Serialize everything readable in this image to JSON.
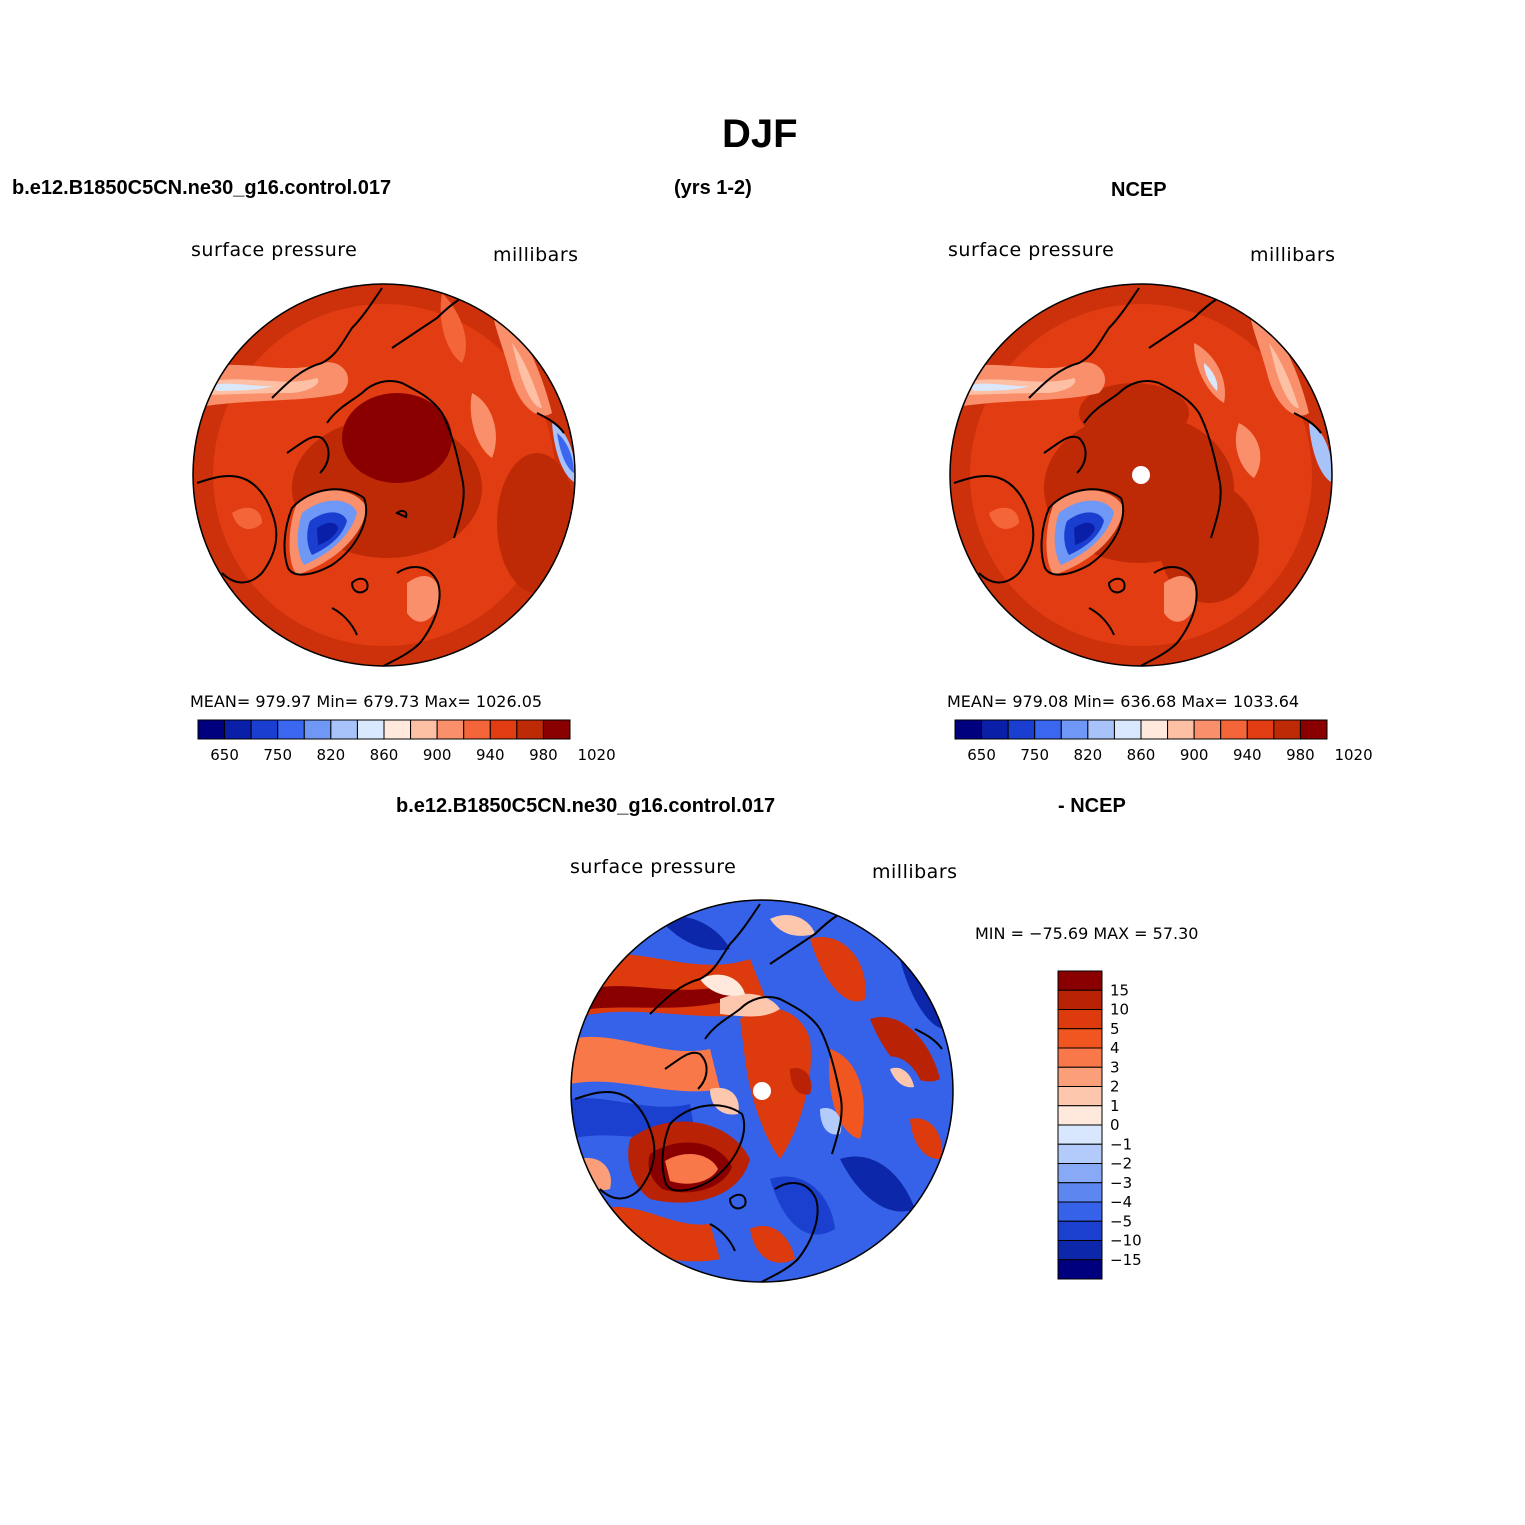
{
  "figure": {
    "title": "DJF",
    "top_left_header": "b.e12.B1850C5CN.ne30_g16.control.017",
    "top_center_header": "(yrs 1-2)",
    "top_right_header": "NCEP",
    "bottom_header_left": "b.e12.B1850C5CN.ne30_g16.control.017",
    "bottom_header_right": "- NCEP"
  },
  "panels": {
    "model": {
      "variable": "surface pressure",
      "units": "millibars",
      "stats": "MEAN= 979.97   Min= 679.73   Max= 1026.05",
      "mean": 979.97,
      "min": 679.73,
      "max": 1026.05
    },
    "obs": {
      "variable": "surface pressure",
      "units": "millibars",
      "stats": "MEAN= 979.08   Min= 636.68   Max= 1033.64",
      "mean": 979.08,
      "min": 636.68,
      "max": 1033.64
    },
    "diff": {
      "variable": "surface pressure",
      "units": "millibars",
      "stats": "MIN = −75.69 MAX =   57.30",
      "min": -75.69,
      "max": 57.3
    }
  },
  "colorbar_abs": {
    "colors": [
      "#00007f",
      "#0a1fa8",
      "#1a3fd0",
      "#3a66f0",
      "#6f97f5",
      "#a8c2fa",
      "#d9e8fd",
      "#ffe8dc",
      "#fdc0a5",
      "#f9906b",
      "#f4663a",
      "#e23c12",
      "#be2a06",
      "#8a0000"
    ],
    "tick_labels": [
      "650",
      "750",
      "820",
      "860",
      "900",
      "940",
      "980",
      "1020"
    ]
  },
  "colorbar_diff": {
    "colors": [
      "#8a0000",
      "#b92204",
      "#dd3a0d",
      "#f25620",
      "#f9784a",
      "#fb9e7a",
      "#fdc7ae",
      "#ffe9dc",
      "#d8e7fd",
      "#b2cbfb",
      "#87a9f6",
      "#5d86f1",
      "#3562e8",
      "#1b3fcf",
      "#0c27a9",
      "#00007f"
    ],
    "tick_labels": [
      "15",
      "10",
      "5",
      "4",
      "3",
      "2",
      "1",
      "0",
      "−1",
      "−2",
      "−3",
      "−4",
      "−5",
      "−10",
      "−15"
    ]
  }
}
